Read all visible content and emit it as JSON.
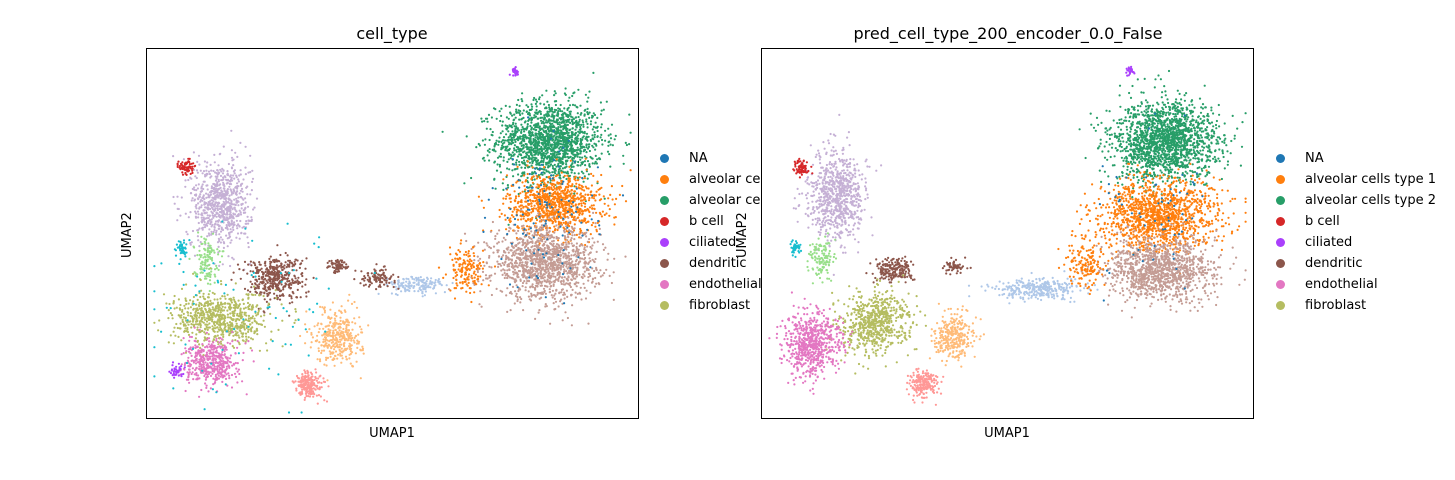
{
  "figure": {
    "background": "#ffffff"
  },
  "chart_data": [
    {
      "type": "scatter",
      "title": "cell_type",
      "xlabel": "UMAP1",
      "ylabel": "UMAP2",
      "grid": false,
      "legend_position": "right, outside plot",
      "xticks": [],
      "yticks": [],
      "legend": [
        {
          "label": "NA",
          "color": "#1f77b4"
        },
        {
          "label": "alveolar ce",
          "color": "#ff7f0e"
        },
        {
          "label": "alveolar ce",
          "color": "#279e68"
        },
        {
          "label": "b cell",
          "color": "#d62728"
        },
        {
          "label": "ciliated",
          "color": "#aa40fc"
        },
        {
          "label": "dendritic",
          "color": "#8c564b"
        },
        {
          "label": "endothelial",
          "color": "#e377c2"
        },
        {
          "label": "fibroblast",
          "color": "#b5bd61"
        }
      ],
      "clusters": [
        {
          "color": "#279e68",
          "cx": 0.82,
          "cy": 0.75,
          "rx": 0.09,
          "ry": 0.09,
          "n": 1600
        },
        {
          "color": "#ff7f0e",
          "cx": 0.83,
          "cy": 0.58,
          "rx": 0.08,
          "ry": 0.07,
          "n": 900
        },
        {
          "color": "#c49c94",
          "cx": 0.81,
          "cy": 0.42,
          "rx": 0.09,
          "ry": 0.08,
          "n": 1300
        },
        {
          "color": "#1f77b4",
          "cx": 0.81,
          "cy": 0.55,
          "rx": 0.09,
          "ry": 0.16,
          "n": 120
        },
        {
          "color": "#ff7f0e",
          "cx": 0.65,
          "cy": 0.4,
          "rx": 0.03,
          "ry": 0.05,
          "n": 150
        },
        {
          "color": "#aec7e8",
          "cx": 0.55,
          "cy": 0.36,
          "rx": 0.05,
          "ry": 0.02,
          "n": 150
        },
        {
          "color": "#8c564b",
          "cx": 0.47,
          "cy": 0.38,
          "rx": 0.03,
          "ry": 0.02,
          "n": 100
        },
        {
          "color": "#c5b0d5",
          "cx": 0.15,
          "cy": 0.58,
          "rx": 0.05,
          "ry": 0.1,
          "n": 750
        },
        {
          "color": "#d62728",
          "cx": 0.08,
          "cy": 0.68,
          "rx": 0.012,
          "ry": 0.018,
          "n": 70
        },
        {
          "color": "#17becf",
          "cx": 0.07,
          "cy": 0.46,
          "rx": 0.01,
          "ry": 0.02,
          "n": 40
        },
        {
          "color": "#98df8a",
          "cx": 0.12,
          "cy": 0.43,
          "rx": 0.02,
          "ry": 0.05,
          "n": 120
        },
        {
          "color": "#8c564b",
          "cx": 0.26,
          "cy": 0.38,
          "rx": 0.05,
          "ry": 0.05,
          "n": 400
        },
        {
          "color": "#8c564b",
          "cx": 0.39,
          "cy": 0.41,
          "rx": 0.018,
          "ry": 0.015,
          "n": 70
        },
        {
          "color": "#b5bd61",
          "cx": 0.15,
          "cy": 0.27,
          "rx": 0.08,
          "ry": 0.06,
          "n": 700
        },
        {
          "color": "#e377c2",
          "cx": 0.13,
          "cy": 0.15,
          "rx": 0.045,
          "ry": 0.05,
          "n": 450
        },
        {
          "color": "#aa40fc",
          "cx": 0.06,
          "cy": 0.13,
          "rx": 0.01,
          "ry": 0.02,
          "n": 45
        },
        {
          "color": "#ffbb78",
          "cx": 0.39,
          "cy": 0.22,
          "rx": 0.04,
          "ry": 0.06,
          "n": 350
        },
        {
          "color": "#ff9896",
          "cx": 0.33,
          "cy": 0.09,
          "rx": 0.025,
          "ry": 0.03,
          "n": 200
        },
        {
          "color": "#aa40fc",
          "cx": 0.75,
          "cy": 0.94,
          "rx": 0.006,
          "ry": 0.01,
          "n": 30
        },
        {
          "color": "#17becf",
          "cx": 0.2,
          "cy": 0.3,
          "rx": 0.18,
          "ry": 0.2,
          "n": 80
        }
      ]
    },
    {
      "type": "scatter",
      "title": "pred_cell_type_200_encoder_0.0_False",
      "xlabel": "UMAP1",
      "ylabel": "UMAP2",
      "grid": false,
      "legend_position": "right, outside plot",
      "xticks": [],
      "yticks": [],
      "legend": [
        {
          "label": "NA",
          "color": "#1f77b4"
        },
        {
          "label": "alveolar cells type 1",
          "color": "#ff7f0e"
        },
        {
          "label": "alveolar cells type 2",
          "color": "#279e68"
        },
        {
          "label": "b cell",
          "color": "#d62728"
        },
        {
          "label": "ciliated",
          "color": "#aa40fc"
        },
        {
          "label": "dendritic",
          "color": "#8c564b"
        },
        {
          "label": "endothelial",
          "color": "#e377c2"
        },
        {
          "label": "fibroblast",
          "color": "#b5bd61"
        }
      ],
      "clusters": [
        {
          "color": "#279e68",
          "cx": 0.82,
          "cy": 0.75,
          "rx": 0.09,
          "ry": 0.09,
          "n": 1700
        },
        {
          "color": "#ff7f0e",
          "cx": 0.81,
          "cy": 0.55,
          "rx": 0.1,
          "ry": 0.08,
          "n": 1300
        },
        {
          "color": "#c49c94",
          "cx": 0.81,
          "cy": 0.4,
          "rx": 0.09,
          "ry": 0.07,
          "n": 1100
        },
        {
          "color": "#aec7e8",
          "cx": 0.56,
          "cy": 0.35,
          "rx": 0.07,
          "ry": 0.025,
          "n": 300
        },
        {
          "color": "#ff7f0e",
          "cx": 0.66,
          "cy": 0.42,
          "rx": 0.03,
          "ry": 0.05,
          "n": 150
        },
        {
          "color": "#8c564b",
          "cx": 0.39,
          "cy": 0.41,
          "rx": 0.02,
          "ry": 0.015,
          "n": 60
        },
        {
          "color": "#c5b0d5",
          "cx": 0.15,
          "cy": 0.6,
          "rx": 0.05,
          "ry": 0.1,
          "n": 750
        },
        {
          "color": "#d62728",
          "cx": 0.08,
          "cy": 0.68,
          "rx": 0.012,
          "ry": 0.018,
          "n": 70
        },
        {
          "color": "#17becf",
          "cx": 0.07,
          "cy": 0.46,
          "rx": 0.01,
          "ry": 0.02,
          "n": 40
        },
        {
          "color": "#98df8a",
          "cx": 0.12,
          "cy": 0.43,
          "rx": 0.02,
          "ry": 0.05,
          "n": 120
        },
        {
          "color": "#8c564b",
          "cx": 0.27,
          "cy": 0.4,
          "rx": 0.03,
          "ry": 0.025,
          "n": 200
        },
        {
          "color": "#b5bd61",
          "cx": 0.23,
          "cy": 0.26,
          "rx": 0.06,
          "ry": 0.07,
          "n": 650
        },
        {
          "color": "#e377c2",
          "cx": 0.1,
          "cy": 0.2,
          "rx": 0.05,
          "ry": 0.07,
          "n": 650
        },
        {
          "color": "#ffbb78",
          "cx": 0.39,
          "cy": 0.22,
          "rx": 0.035,
          "ry": 0.05,
          "n": 300
        },
        {
          "color": "#ff9896",
          "cx": 0.33,
          "cy": 0.09,
          "rx": 0.025,
          "ry": 0.03,
          "n": 200
        },
        {
          "color": "#aa40fc",
          "cx": 0.75,
          "cy": 0.94,
          "rx": 0.006,
          "ry": 0.01,
          "n": 30
        },
        {
          "color": "#1f77b4",
          "cx": 0.8,
          "cy": 0.55,
          "rx": 0.1,
          "ry": 0.15,
          "n": 60
        }
      ]
    }
  ]
}
